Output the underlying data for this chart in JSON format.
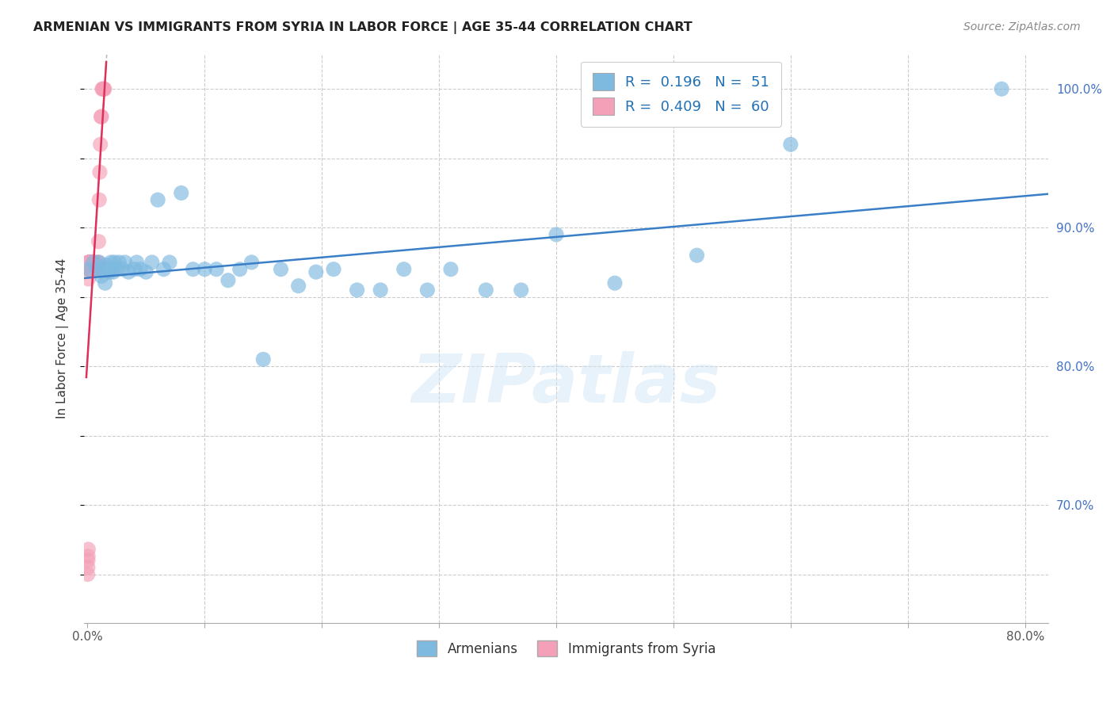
{
  "title": "ARMENIAN VS IMMIGRANTS FROM SYRIA IN LABOR FORCE | AGE 35-44 CORRELATION CHART",
  "source": "Source: ZipAtlas.com",
  "ylabel": "In Labor Force | Age 35-44",
  "xmin": -0.003,
  "xmax": 0.82,
  "ymin": 0.615,
  "ymax": 1.025,
  "x_ticks": [
    0.0,
    0.1,
    0.2,
    0.3,
    0.4,
    0.5,
    0.6,
    0.7,
    0.8
  ],
  "y_ticks": [
    0.65,
    0.7,
    0.75,
    0.8,
    0.85,
    0.9,
    0.95,
    1.0
  ],
  "y_tick_labels": [
    "",
    "70.0%",
    "",
    "80.0%",
    "",
    "90.0%",
    "",
    "100.0%"
  ],
  "legend_armenians": "Armenians",
  "legend_syria": "Immigrants from Syria",
  "r_armenians": 0.196,
  "n_armenians": 51,
  "r_syria": 0.409,
  "n_syria": 60,
  "blue_color": "#7eb9e0",
  "pink_color": "#f4a0b8",
  "blue_line_color": "#3a7ec8",
  "pink_line_color": "#e0305a",
  "watermark": "ZIPatlas",
  "armenians_x": [
    0.001,
    0.005,
    0.008,
    0.01,
    0.012,
    0.013,
    0.015,
    0.016,
    0.018,
    0.019,
    0.02,
    0.021,
    0.022,
    0.023,
    0.025,
    0.027,
    0.03,
    0.032,
    0.035,
    0.04,
    0.042,
    0.045,
    0.05,
    0.055,
    0.06,
    0.065,
    0.07,
    0.08,
    0.09,
    0.1,
    0.11,
    0.12,
    0.13,
    0.14,
    0.15,
    0.165,
    0.18,
    0.195,
    0.21,
    0.23,
    0.25,
    0.27,
    0.29,
    0.31,
    0.34,
    0.37,
    0.4,
    0.45,
    0.52,
    0.6,
    0.78
  ],
  "armenians_y": [
    0.87,
    0.875,
    0.87,
    0.875,
    0.865,
    0.87,
    0.86,
    0.873,
    0.87,
    0.868,
    0.875,
    0.87,
    0.868,
    0.875,
    0.87,
    0.875,
    0.87,
    0.875,
    0.868,
    0.87,
    0.875,
    0.87,
    0.868,
    0.875,
    0.92,
    0.87,
    0.875,
    0.925,
    0.87,
    0.87,
    0.87,
    0.862,
    0.87,
    0.875,
    0.805,
    0.87,
    0.858,
    0.868,
    0.87,
    0.855,
    0.855,
    0.87,
    0.855,
    0.87,
    0.855,
    0.855,
    0.895,
    0.86,
    0.88,
    0.96,
    1.0
  ],
  "syria_x": [
    0.0002,
    0.0003,
    0.0004,
    0.0005,
    0.0006,
    0.0007,
    0.0008,
    0.0009,
    0.001,
    0.0011,
    0.0012,
    0.0013,
    0.0014,
    0.0015,
    0.0016,
    0.0018,
    0.002,
    0.0021,
    0.0022,
    0.0023,
    0.0024,
    0.0025,
    0.0027,
    0.0028,
    0.003,
    0.0032,
    0.0033,
    0.0035,
    0.0037,
    0.0038,
    0.004,
    0.0042,
    0.0044,
    0.0046,
    0.0048,
    0.005,
    0.0052,
    0.0055,
    0.0058,
    0.006,
    0.0063,
    0.0065,
    0.0068,
    0.007,
    0.0073,
    0.0076,
    0.008,
    0.0085,
    0.009,
    0.0095,
    0.01,
    0.0105,
    0.011,
    0.0115,
    0.012,
    0.0125,
    0.013,
    0.0135,
    0.014,
    0.0145
  ],
  "syria_y": [
    0.65,
    0.655,
    0.66,
    0.663,
    0.668,
    0.863,
    0.87,
    0.875,
    0.875,
    0.87,
    0.875,
    0.875,
    0.875,
    0.87,
    0.875,
    0.875,
    0.875,
    0.87,
    0.875,
    0.875,
    0.87,
    0.875,
    0.875,
    0.87,
    0.875,
    0.875,
    0.875,
    0.875,
    0.875,
    0.875,
    0.875,
    0.875,
    0.875,
    0.875,
    0.875,
    0.875,
    0.875,
    0.875,
    0.875,
    0.87,
    0.87,
    0.87,
    0.87,
    0.87,
    0.87,
    0.87,
    0.87,
    0.875,
    0.875,
    0.89,
    0.92,
    0.94,
    0.96,
    0.98,
    0.98,
    1.0,
    1.0,
    1.0,
    1.0,
    1.0
  ]
}
